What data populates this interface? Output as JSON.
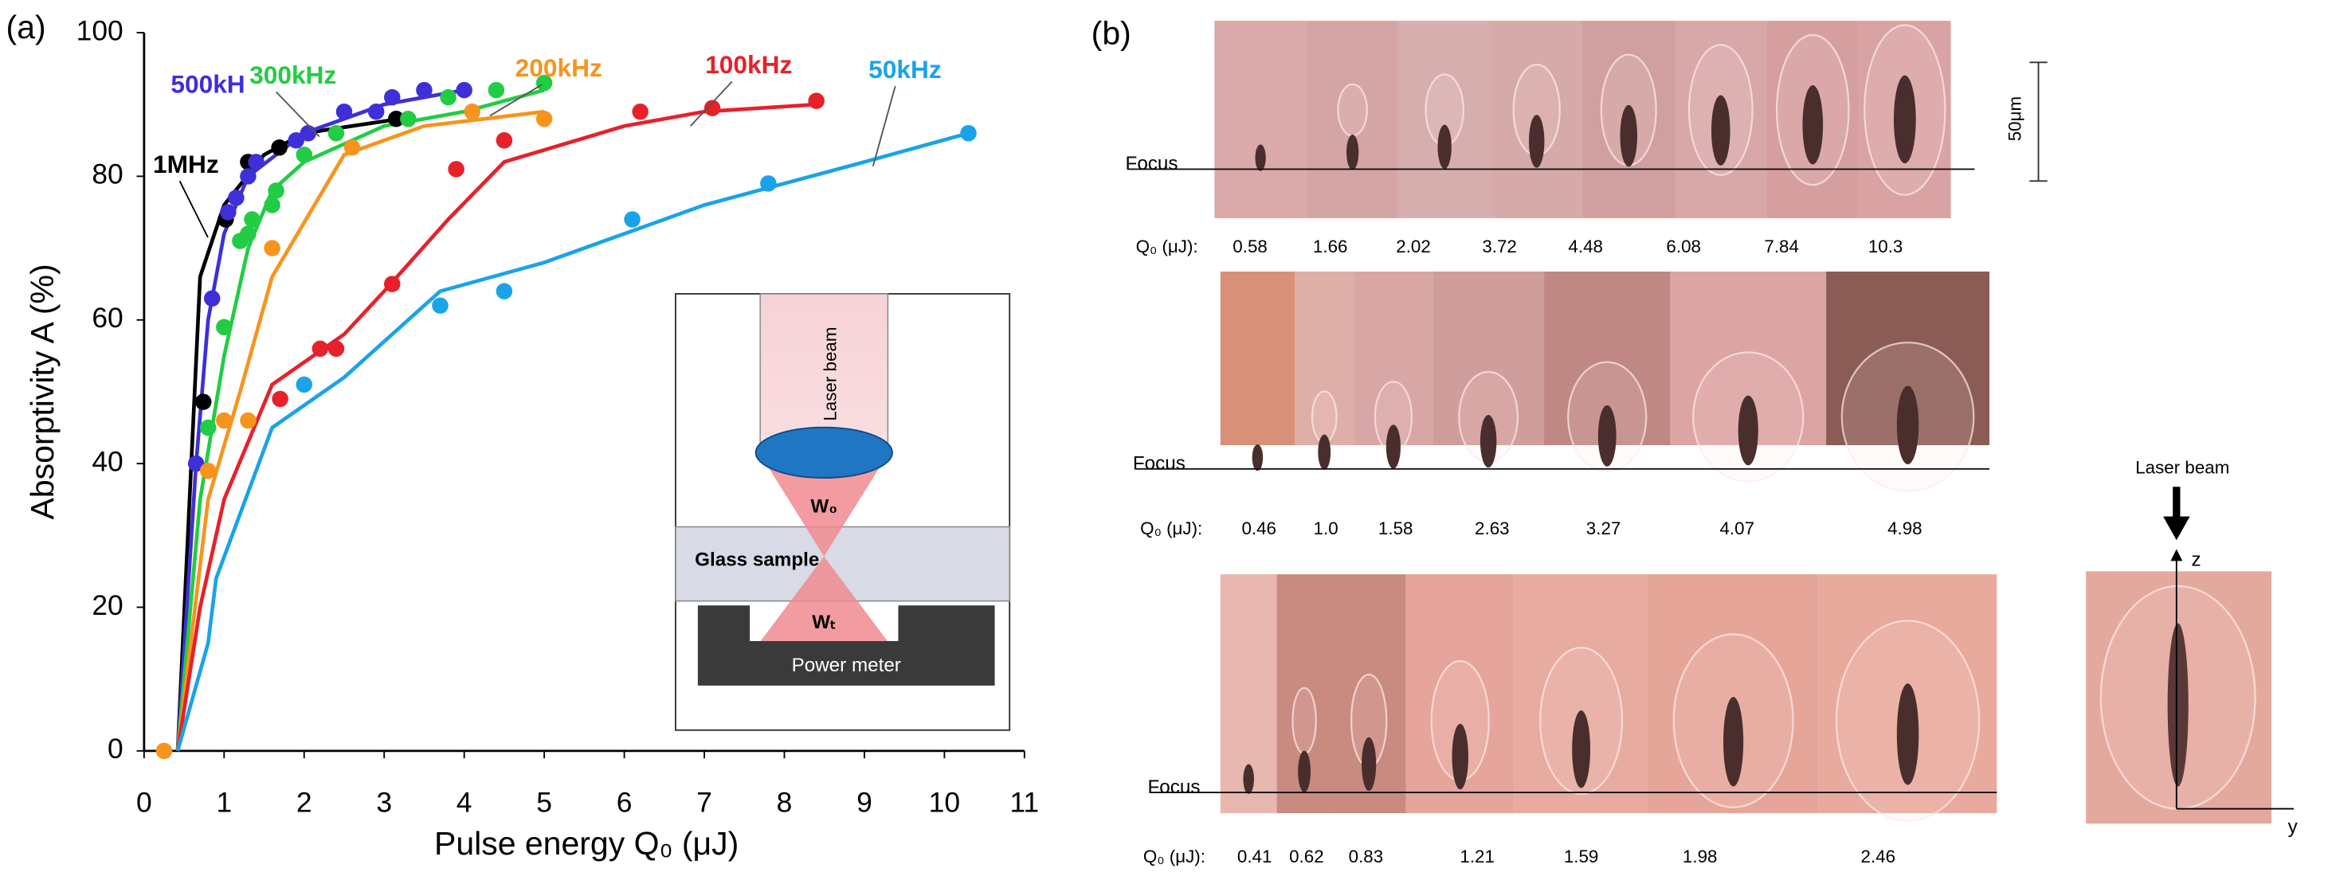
{
  "chart_data": {
    "type": "scatter",
    "panel_label": "(a)",
    "xlabel": "Pulse energy Q₀ (μJ)",
    "ylabel": "Absorptivity A (%)",
    "xlim": [
      0,
      11
    ],
    "xticks": [
      0,
      1,
      2,
      3,
      4,
      5,
      6,
      7,
      8,
      9,
      10,
      11
    ],
    "ylim": [
      0,
      100
    ],
    "yticks": [
      0,
      20,
      40,
      60,
      80,
      100
    ],
    "series": [
      {
        "name": "1MHz",
        "color": "#000000",
        "x": [
          0.74,
          1.02,
          1.3,
          1.69,
          3.15
        ],
        "values": [
          48.6,
          74,
          82,
          84,
          88
        ],
        "fit_x": [
          0.42,
          0.7,
          1.0,
          1.5,
          2.0,
          3.2
        ],
        "fit_values": [
          0,
          66,
          76,
          83,
          86,
          88
        ]
      },
      {
        "name": "500kH",
        "color": "#3f2fd8",
        "x": [
          0.65,
          0.85,
          1.05,
          1.15,
          1.3,
          1.4,
          1.9,
          2.05,
          2.5,
          2.9,
          3.1,
          3.5,
          4.0
        ],
        "values": [
          40,
          63,
          75,
          77,
          80,
          82,
          85,
          86,
          89,
          89,
          91,
          92,
          92
        ],
        "fit_x": [
          0.42,
          0.65,
          0.8,
          1.0,
          1.3,
          2.0,
          3.0,
          4.0
        ],
        "fit_values": [
          0,
          40,
          60,
          72,
          80,
          86,
          90,
          92
        ]
      },
      {
        "name": "300kHz",
        "color": "#22cc44",
        "x": [
          0.8,
          1.0,
          1.2,
          1.3,
          1.35,
          1.6,
          1.65,
          2.0,
          2.4,
          3.3,
          3.8,
          4.4,
          5.0
        ],
        "values": [
          45,
          59,
          71,
          72,
          74,
          76,
          78,
          83,
          86,
          88,
          91,
          92,
          93
        ],
        "fit_x": [
          0.42,
          0.7,
          1.0,
          1.3,
          1.6,
          2.0,
          3.0,
          4.0,
          5.0
        ],
        "fit_values": [
          0,
          35,
          55,
          70,
          78,
          82,
          87,
          89,
          92
        ]
      },
      {
        "name": "200kHz",
        "color": "#f7941d",
        "x": [
          0.25,
          0.8,
          1.0,
          1.3,
          1.6,
          2.6,
          4.1,
          5.0
        ],
        "values": [
          0,
          39,
          46,
          46,
          70,
          84,
          89,
          88
        ],
        "fit_x": [
          0.42,
          0.8,
          1.2,
          1.6,
          2.5,
          3.5,
          5.0
        ],
        "fit_values": [
          0,
          35,
          50,
          66,
          83,
          87,
          89
        ]
      },
      {
        "name": "100kHz",
        "color": "#e8202a",
        "x": [
          1.7,
          2.2,
          2.4,
          3.1,
          3.9,
          4.5,
          6.2,
          7.1,
          8.4
        ],
        "values": [
          49,
          56,
          56,
          65,
          81,
          85,
          89,
          89.5,
          90.5
        ],
        "fit_x": [
          0.42,
          0.7,
          1.0,
          1.6,
          2.5,
          3.0,
          3.8,
          4.5,
          6.0,
          7.0,
          8.4
        ],
        "fit_values": [
          0,
          20,
          35,
          51,
          58,
          64,
          74,
          82,
          87,
          89,
          90
        ]
      },
      {
        "name": "50kHz",
        "color": "#1aa3e8",
        "x": [
          2.0,
          3.7,
          4.5,
          6.1,
          7.8,
          10.3
        ],
        "values": [
          51,
          62,
          64,
          74,
          79,
          86
        ],
        "fit_x": [
          0.42,
          0.8,
          0.9,
          1.6,
          2.5,
          3.7,
          5.0,
          6.0,
          7.0,
          8.0,
          9.0,
          10.3
        ],
        "fit_values": [
          0,
          15,
          24,
          45,
          52,
          64,
          68,
          72,
          76,
          79,
          82,
          86
        ]
      }
    ],
    "inset": {
      "beam": "Laser beam",
      "waist_top": "W₀",
      "glass": "Glass sample",
      "waist_bottom": "Wₜ",
      "meter": "Power meter"
    }
  },
  "panel_b": {
    "panel_label": "(b)",
    "focus": "Focus",
    "scale": "50μm",
    "q_label": "Q₀ (μJ):",
    "rows": [
      [
        "0.58",
        "1.66",
        "2.02",
        "3.72",
        "4.48",
        "6.08",
        "7.84",
        "10.3"
      ],
      [
        "0.46",
        "1.0",
        "1.58",
        "2.63",
        "3.27",
        "4.07",
        "4.98"
      ],
      [
        "0.41",
        "0.62",
        "0.83",
        "1.21",
        "1.59",
        "1.98",
        "2.46"
      ]
    ],
    "side": {
      "beam": "Laser beam",
      "z": "z",
      "y": "y"
    }
  }
}
